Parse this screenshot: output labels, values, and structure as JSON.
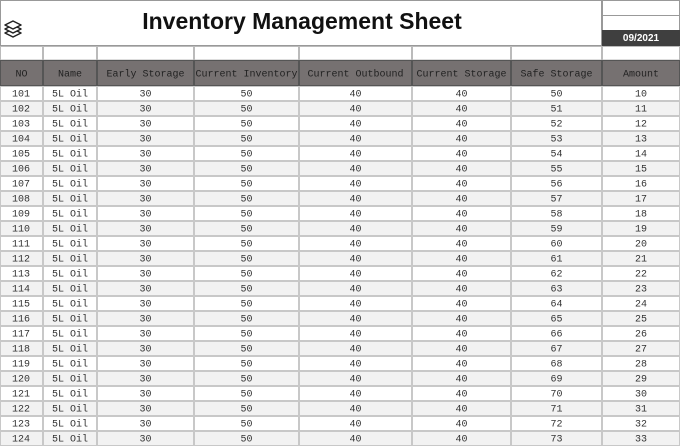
{
  "header": {
    "title": "Inventory Management Sheet",
    "date": "09/2021"
  },
  "table": {
    "columns": [
      "NO",
      "Name",
      "Early Storage",
      "Current Inventory",
      "Current Outbound",
      "Current Storage",
      "Safe Storage",
      "Amount"
    ],
    "rows": [
      [
        101,
        "5L Oil",
        30,
        50,
        40,
        40,
        50,
        10
      ],
      [
        102,
        "5L Oil",
        30,
        50,
        40,
        40,
        51,
        11
      ],
      [
        103,
        "5L Oil",
        30,
        50,
        40,
        40,
        52,
        12
      ],
      [
        104,
        "5L Oil",
        30,
        50,
        40,
        40,
        53,
        13
      ],
      [
        105,
        "5L Oil",
        30,
        50,
        40,
        40,
        54,
        14
      ],
      [
        106,
        "5L Oil",
        30,
        50,
        40,
        40,
        55,
        15
      ],
      [
        107,
        "5L Oil",
        30,
        50,
        40,
        40,
        56,
        16
      ],
      [
        108,
        "5L Oil",
        30,
        50,
        40,
        40,
        57,
        17
      ],
      [
        109,
        "5L Oil",
        30,
        50,
        40,
        40,
        58,
        18
      ],
      [
        110,
        "5L Oil",
        30,
        50,
        40,
        40,
        59,
        19
      ],
      [
        111,
        "5L Oil",
        30,
        50,
        40,
        40,
        60,
        20
      ],
      [
        112,
        "5L Oil",
        30,
        50,
        40,
        40,
        61,
        21
      ],
      [
        113,
        "5L Oil",
        30,
        50,
        40,
        40,
        62,
        22
      ],
      [
        114,
        "5L Oil",
        30,
        50,
        40,
        40,
        63,
        23
      ],
      [
        115,
        "5L Oil",
        30,
        50,
        40,
        40,
        64,
        24
      ],
      [
        116,
        "5L Oil",
        30,
        50,
        40,
        40,
        65,
        25
      ],
      [
        117,
        "5L Oil",
        30,
        50,
        40,
        40,
        66,
        26
      ],
      [
        118,
        "5L Oil",
        30,
        50,
        40,
        40,
        67,
        27
      ],
      [
        119,
        "5L Oil",
        30,
        50,
        40,
        40,
        68,
        28
      ],
      [
        120,
        "5L Oil",
        30,
        50,
        40,
        40,
        69,
        29
      ],
      [
        121,
        "5L Oil",
        30,
        50,
        40,
        40,
        70,
        30
      ],
      [
        122,
        "5L Oil",
        30,
        50,
        40,
        40,
        71,
        31
      ],
      [
        123,
        "5L Oil",
        30,
        50,
        40,
        40,
        72,
        32
      ],
      [
        124,
        "5L Oil",
        30,
        50,
        40,
        40,
        73,
        33
      ]
    ]
  }
}
